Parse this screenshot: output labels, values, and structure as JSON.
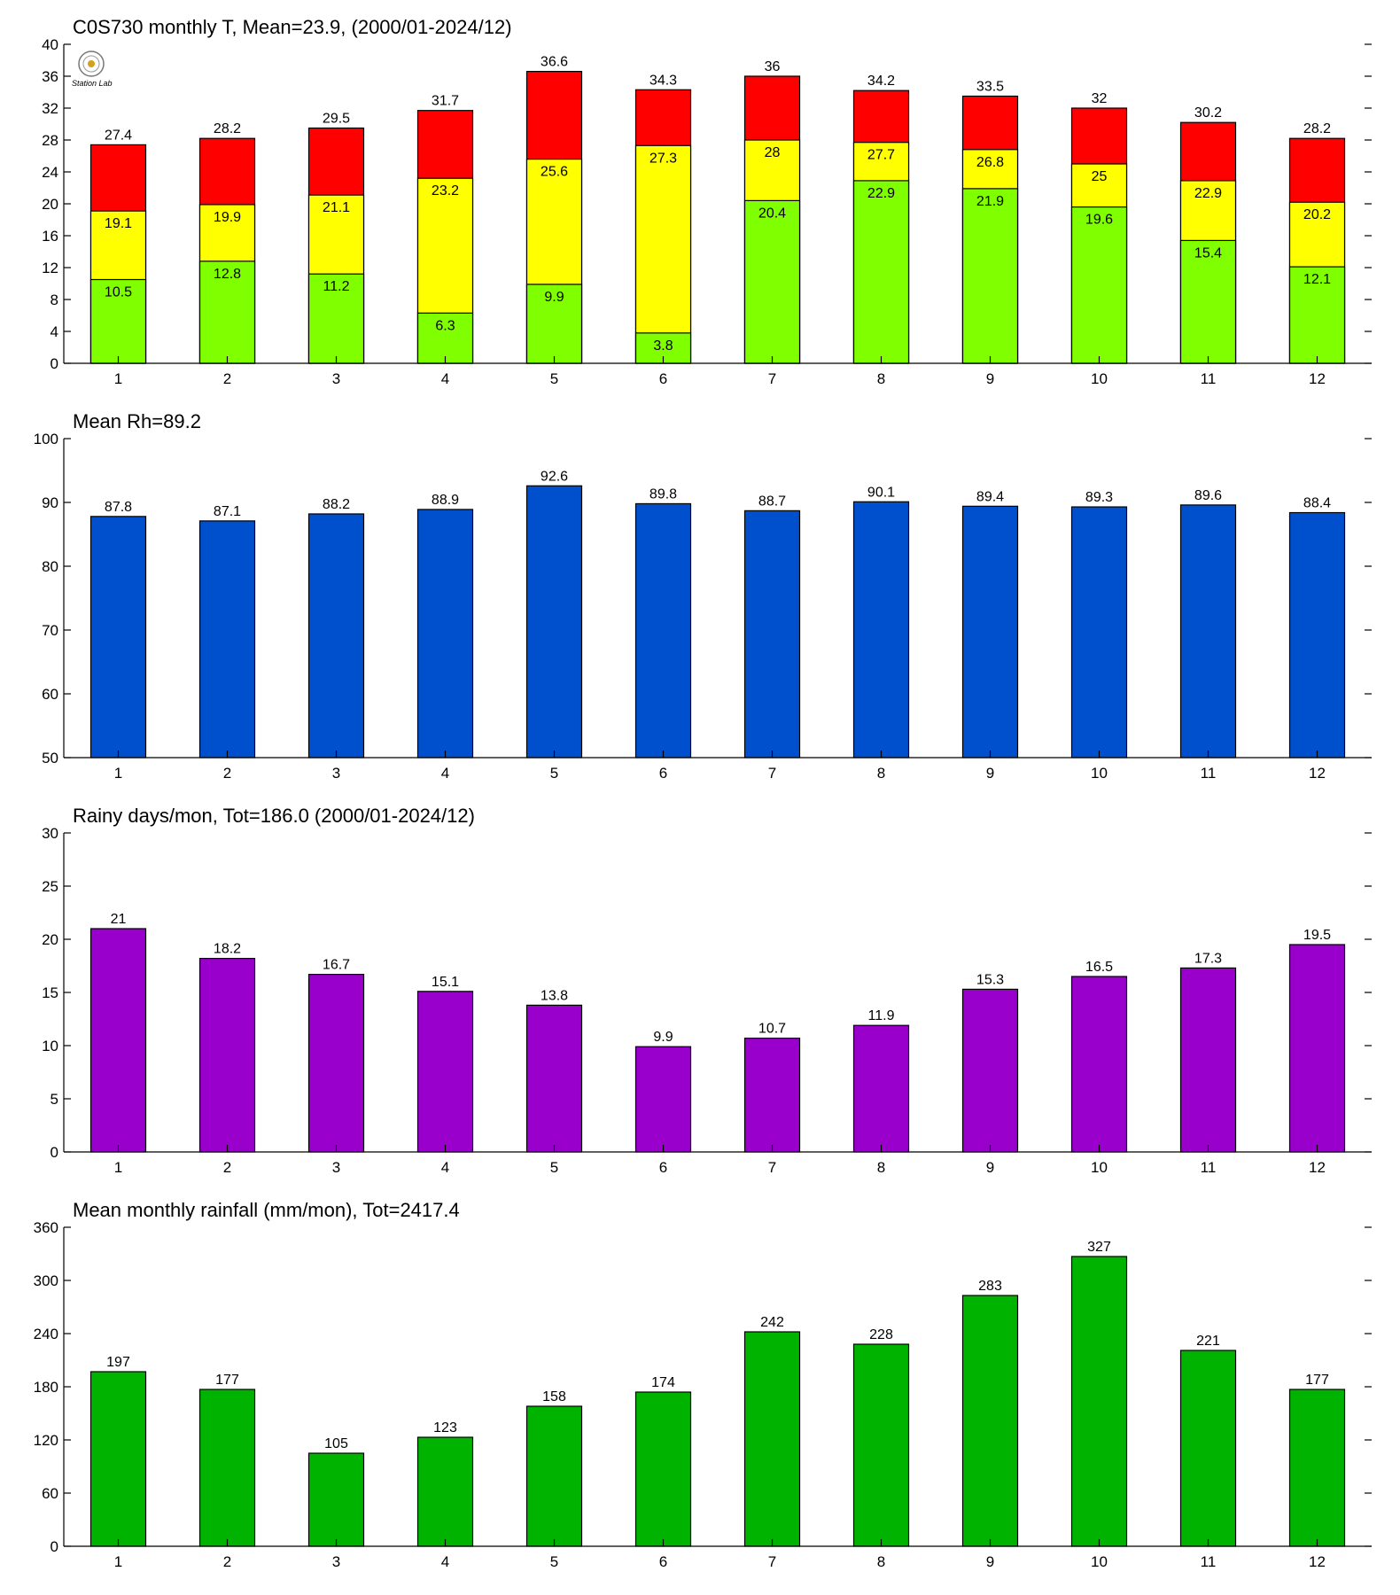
{
  "chart_data": [
    {
      "type": "bar",
      "title": "C0S730 monthly T, Mean=23.9, (2000/01-2024/12)",
      "categories": [
        "1",
        "2",
        "3",
        "4",
        "5",
        "6",
        "7",
        "8",
        "9",
        "10",
        "11",
        "12"
      ],
      "ylim": [
        0,
        40
      ],
      "yticks": [
        0,
        4,
        8,
        12,
        16,
        20,
        24,
        28,
        32,
        36,
        40
      ],
      "xlabel": "",
      "ylabel": "",
      "grid": false,
      "series": [
        {
          "color": "#80ff00",
          "values": [
            10.5,
            12.8,
            11.2,
            6.3,
            9.9,
            3.8,
            20.4,
            22.9,
            21.9,
            19.6,
            15.4,
            12.1
          ]
        },
        {
          "color": "#ffff00",
          "values": [
            19.1,
            19.9,
            21.1,
            23.2,
            25.6,
            27.3,
            28,
            27.7,
            26.8,
            25,
            22.9,
            20.2
          ]
        },
        {
          "color": "#ff0000",
          "values": [
            27.4,
            28.2,
            29.5,
            31.7,
            36.6,
            34.3,
            36,
            34.2,
            33.5,
            32,
            30.2,
            28.2
          ]
        }
      ],
      "logo_text": "Station Lab",
      "logo_color": "#1a4fb5"
    },
    {
      "type": "bar",
      "title": "Mean Rh=89.2",
      "categories": [
        "1",
        "2",
        "3",
        "4",
        "5",
        "6",
        "7",
        "8",
        "9",
        "10",
        "11",
        "12"
      ],
      "ylim": [
        50,
        100
      ],
      "yticks": [
        50,
        60,
        70,
        80,
        90,
        100
      ],
      "xlabel": "",
      "ylabel": "",
      "grid": false,
      "series": [
        {
          "color": "#004fcc",
          "values": [
            87.8,
            87.1,
            88.2,
            88.9,
            92.6,
            89.8,
            88.7,
            90.1,
            89.4,
            89.3,
            89.6,
            88.4
          ]
        }
      ]
    },
    {
      "type": "bar",
      "title": "Rainy days/mon, Tot=186.0 (2000/01-2024/12)",
      "categories": [
        "1",
        "2",
        "3",
        "4",
        "5",
        "6",
        "7",
        "8",
        "9",
        "10",
        "11",
        "12"
      ],
      "ylim": [
        0,
        30
      ],
      "yticks": [
        0,
        5,
        10,
        15,
        20,
        25,
        30
      ],
      "xlabel": "",
      "ylabel": "",
      "grid": false,
      "series": [
        {
          "color": "#9900cc",
          "values": [
            21,
            18.2,
            16.7,
            15.1,
            13.8,
            9.9,
            10.7,
            11.9,
            15.3,
            16.5,
            17.3,
            19.5
          ]
        }
      ]
    },
    {
      "type": "bar",
      "title": "Mean monthly rainfall (mm/mon), Tot=2417.4",
      "categories": [
        "1",
        "2",
        "3",
        "4",
        "5",
        "6",
        "7",
        "8",
        "9",
        "10",
        "11",
        "12"
      ],
      "ylim": [
        0,
        360
      ],
      "yticks": [
        0,
        60,
        120,
        180,
        240,
        300,
        360
      ],
      "xlabel": "",
      "ylabel": "",
      "grid": false,
      "series": [
        {
          "color": "#00b300",
          "values": [
            197,
            177,
            105,
            123,
            158,
            174,
            242,
            228,
            283,
            327,
            221,
            177
          ]
        }
      ]
    }
  ]
}
